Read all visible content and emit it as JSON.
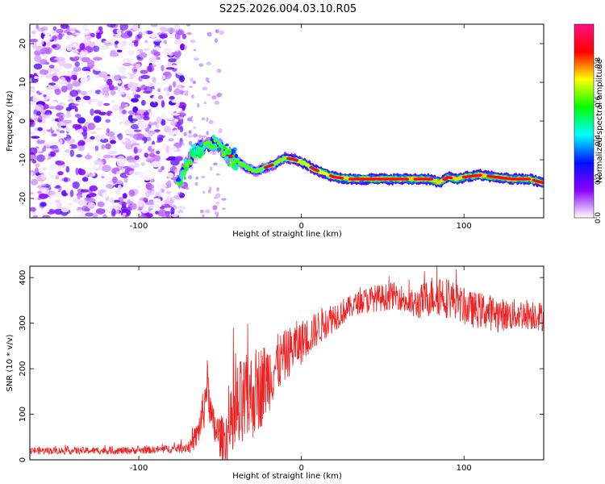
{
  "chart_data": [
    {
      "type": "heatmap",
      "title": "S225.2026.004.03.10.R05",
      "xlabel": "Height of straight line (km)",
      "ylabel": "Frequency (Hz)",
      "xlim": [
        -167,
        149
      ],
      "ylim": [
        -25,
        25
      ],
      "xticks": [
        -100,
        0,
        100
      ],
      "yticks": [
        20,
        10,
        0,
        -10,
        -20
      ],
      "noise_region_x": [
        -167,
        -75
      ],
      "ridge": {
        "x": [
          -76,
          -70,
          -64,
          -58,
          -52,
          -46,
          -40,
          -34,
          -28,
          -22,
          -16,
          -10,
          -4,
          2,
          8,
          14,
          20,
          30,
          40,
          50,
          60,
          70,
          80,
          85,
          90,
          95,
          100,
          110,
          120,
          130,
          140,
          149
        ],
        "y": [
          -16,
          -11,
          -7.5,
          -6.5,
          -6,
          -8.5,
          -10,
          -12,
          -13,
          -12,
          -11,
          -9.5,
          -10,
          -11,
          -12.5,
          -13.5,
          -14.5,
          -15,
          -15,
          -15,
          -15,
          -15,
          -15,
          -16,
          -14.5,
          -15,
          -14.5,
          -14,
          -14.5,
          -15,
          -15,
          -16
        ]
      },
      "colorbar": {
        "label": "Normalized spectral amplitude",
        "range": [
          0,
          1
        ],
        "ticks": [
          0.0,
          0.2,
          0.4,
          0.6,
          0.8
        ],
        "tick_labels": [
          "0.0",
          "0.2",
          "0.4",
          "0.6",
          "0.8"
        ],
        "colors": [
          "#ffffff",
          "#8a00ff",
          "#0010ff",
          "#00ffff",
          "#00ff00",
          "#ffff00",
          "#ff0000",
          "#ff1080"
        ]
      }
    },
    {
      "type": "line",
      "xlabel": "Height of straight line (km)",
      "ylabel": "SNR (10 * v/v)",
      "xlim": [
        -167,
        149
      ],
      "ylim": [
        0,
        425
      ],
      "xticks": [
        -100,
        0,
        100
      ],
      "yticks": [
        0,
        100,
        200,
        300,
        400
      ],
      "series": [
        {
          "name": "SNR",
          "color": "#ee2222",
          "x": [
            -167,
            -150,
            -130,
            -110,
            -90,
            -75,
            -68,
            -64,
            -60,
            -58,
            -55,
            -52,
            -48,
            -44,
            -40,
            -36,
            -32,
            -28,
            -24,
            -20,
            -16,
            -12,
            -8,
            -4,
            0,
            4,
            8,
            12,
            16,
            20,
            25,
            30,
            35,
            40,
            45,
            50,
            55,
            60,
            65,
            70,
            75,
            80,
            85,
            90,
            95,
            100,
            105,
            110,
            115,
            120,
            125,
            130,
            135,
            140,
            145,
            149
          ],
          "y": [
            20,
            20,
            20,
            20,
            22,
            25,
            30,
            55,
            110,
            175,
            80,
            60,
            45,
            60,
            95,
            115,
            135,
            150,
            165,
            185,
            205,
            220,
            235,
            250,
            258,
            270,
            282,
            295,
            305,
            315,
            325,
            335,
            345,
            350,
            355,
            355,
            360,
            360,
            345,
            340,
            350,
            360,
            365,
            355,
            350,
            335,
            330,
            328,
            325,
            320,
            318,
            318,
            320,
            320,
            320,
            310
          ],
          "amplitude": [
            8,
            8,
            8,
            8,
            8,
            10,
            15,
            30,
            50,
            50,
            45,
            45,
            50,
            80,
            120,
            110,
            100,
            100,
            90,
            80,
            70,
            60,
            55,
            55,
            50,
            45,
            40,
            40,
            35,
            35,
            30,
            25,
            25,
            30,
            30,
            30,
            30,
            30,
            30,
            35,
            40,
            45,
            50,
            45,
            40,
            40,
            40,
            40,
            40,
            40,
            35,
            35,
            35,
            35,
            35,
            30
          ]
        }
      ]
    }
  ]
}
